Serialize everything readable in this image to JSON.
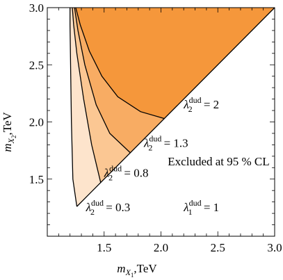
{
  "chart_data": {
    "type": "area",
    "xlim": [
      1.0,
      3.0
    ],
    "ylim": [
      1.0,
      3.0
    ],
    "x_ticks": [
      1.5,
      2.0,
      2.5,
      3.0
    ],
    "x_tick_labels": [
      "1.5",
      "2.0",
      "2.5",
      "3.0"
    ],
    "y_ticks": [
      1.5,
      2.0,
      2.5,
      3.0
    ],
    "y_tick_labels": [
      "1.5",
      "2.0",
      "2.5",
      "3.0"
    ],
    "xlabel": {
      "main": "m",
      "sub": "X",
      "subsub": "1",
      "unit": ",TeV"
    },
    "ylabel": {
      "main": "m",
      "sub": "X",
      "subsub": "2",
      "unit": ",TeV"
    },
    "grid": false,
    "diagonal": {
      "x": [
        1.26,
        3.0
      ],
      "y": [
        1.26,
        3.0
      ]
    },
    "regions": [
      {
        "label": "0.3",
        "color": "#fde4cc",
        "boundary_x": [
          1.26,
          1.225,
          1.212,
          1.205,
          1.2,
          1.2
        ],
        "boundary_y": [
          1.26,
          1.5,
          2.0,
          2.5,
          2.85,
          3.0
        ]
      },
      {
        "label": "0.8",
        "color": "#fbc793",
        "boundary_x": [
          1.47,
          1.39,
          1.32,
          1.26,
          1.232,
          1.22
        ],
        "boundary_y": [
          1.47,
          1.8,
          2.2,
          2.6,
          2.85,
          3.0
        ]
      },
      {
        "label": "1.3",
        "color": "#f8ac63",
        "boundary_x": [
          1.73,
          1.55,
          1.43,
          1.33,
          1.27,
          1.24
        ],
        "boundary_y": [
          1.73,
          1.9,
          2.15,
          2.5,
          2.8,
          3.0
        ]
      },
      {
        "label": "2",
        "color": "#f5973b",
        "boundary_x": [
          2.03,
          1.82,
          1.62,
          1.48,
          1.37,
          1.29,
          1.25
        ],
        "boundary_y": [
          2.03,
          2.09,
          2.22,
          2.4,
          2.62,
          2.85,
          3.0
        ]
      }
    ],
    "lambda_symbol": "λ",
    "lambda2_sub": "2",
    "lambda_sup": "dud",
    "annotations": [
      {
        "pos": [
          2.2,
          2.12
        ],
        "prefix": "λ",
        "sub": "2",
        "sup": "dud",
        "suffix": " = 2"
      },
      {
        "pos": [
          1.85,
          1.78
        ],
        "prefix": "λ",
        "sub": "2",
        "sup": "dud",
        "suffix": " = 1.3"
      },
      {
        "pos": [
          1.5,
          1.52
        ],
        "prefix": "λ",
        "sub": "2",
        "sup": "dud",
        "suffix": " = 0.8"
      },
      {
        "pos": [
          1.34,
          1.22
        ],
        "prefix": "λ",
        "sub": "2",
        "sup": "dud",
        "suffix": " = 0.3"
      },
      {
        "pos": [
          2.2,
          1.22
        ],
        "prefix": "λ",
        "sub": "1",
        "sup": "dud",
        "suffix": " = 1"
      },
      {
        "pos": [
          2.06,
          1.62
        ],
        "text": "Excluded at 95 % CL"
      }
    ]
  }
}
